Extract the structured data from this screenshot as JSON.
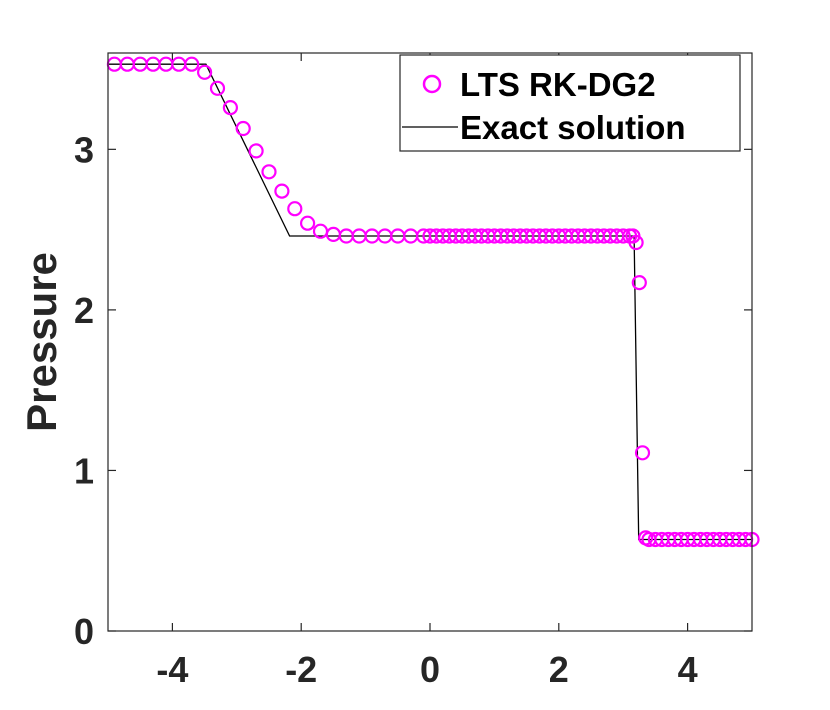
{
  "chart_data": {
    "type": "line",
    "title": "",
    "xlabel": "",
    "ylabel": "Pressure",
    "xlim": [
      -5,
      5
    ],
    "ylim": [
      0,
      3.6
    ],
    "xticks": [
      -4,
      -2,
      0,
      2,
      4
    ],
    "yticks": [
      0,
      1,
      2,
      3
    ],
    "xtick_labels": [
      "-4",
      "-2",
      "0",
      "2",
      "4"
    ],
    "ytick_labels": [
      "0",
      "1",
      "2",
      "3"
    ],
    "grid": false,
    "legend_position": "top-right",
    "colors": {
      "markers": "#ff00ff",
      "exact": "#000000",
      "axes": "#262626"
    },
    "series": [
      {
        "name": "LTS RK-DG2",
        "style": "circle-markers",
        "x": [
          -4.9,
          -4.7,
          -4.5,
          -4.3,
          -4.1,
          -3.9,
          -3.7,
          -3.5,
          -3.3,
          -3.1,
          -2.9,
          -2.7,
          -2.5,
          -2.3,
          -2.1,
          -1.9,
          -1.7,
          -1.5,
          -1.3,
          -1.1,
          -0.9,
          -0.7,
          -0.5,
          -0.3,
          -0.1,
          0.0,
          0.1,
          0.2,
          0.3,
          0.4,
          0.5,
          0.6,
          0.7,
          0.8,
          0.9,
          1.0,
          1.1,
          1.2,
          1.3,
          1.4,
          1.5,
          1.6,
          1.7,
          1.8,
          1.9,
          2.0,
          2.1,
          2.2,
          2.3,
          2.4,
          2.5,
          2.6,
          2.7,
          2.8,
          2.9,
          3.0,
          3.1,
          3.15,
          3.2,
          3.25,
          3.3,
          3.35,
          3.4,
          3.5,
          3.6,
          3.7,
          3.8,
          3.9,
          4.0,
          4.1,
          4.2,
          4.3,
          4.4,
          4.5,
          4.6,
          4.7,
          4.8,
          4.9,
          5.0
        ],
        "y": [
          3.53,
          3.53,
          3.53,
          3.53,
          3.53,
          3.53,
          3.53,
          3.48,
          3.38,
          3.26,
          3.13,
          2.99,
          2.86,
          2.74,
          2.63,
          2.54,
          2.49,
          2.47,
          2.46,
          2.46,
          2.46,
          2.46,
          2.46,
          2.46,
          2.46,
          2.46,
          2.46,
          2.46,
          2.46,
          2.46,
          2.46,
          2.46,
          2.46,
          2.46,
          2.46,
          2.46,
          2.46,
          2.46,
          2.46,
          2.46,
          2.46,
          2.46,
          2.46,
          2.46,
          2.46,
          2.46,
          2.46,
          2.46,
          2.46,
          2.46,
          2.46,
          2.46,
          2.46,
          2.46,
          2.46,
          2.46,
          2.46,
          2.46,
          2.42,
          2.17,
          1.11,
          0.58,
          0.57,
          0.57,
          0.57,
          0.57,
          0.57,
          0.57,
          0.57,
          0.57,
          0.57,
          0.57,
          0.57,
          0.57,
          0.57,
          0.57,
          0.57,
          0.57,
          0.57
        ]
      },
      {
        "name": "Exact solution",
        "style": "solid-line",
        "x": [
          -5.0,
          -3.48,
          -2.18,
          3.17,
          3.24,
          5.0
        ],
        "y": [
          3.53,
          3.53,
          2.46,
          2.46,
          0.57,
          0.57
        ]
      }
    ]
  }
}
